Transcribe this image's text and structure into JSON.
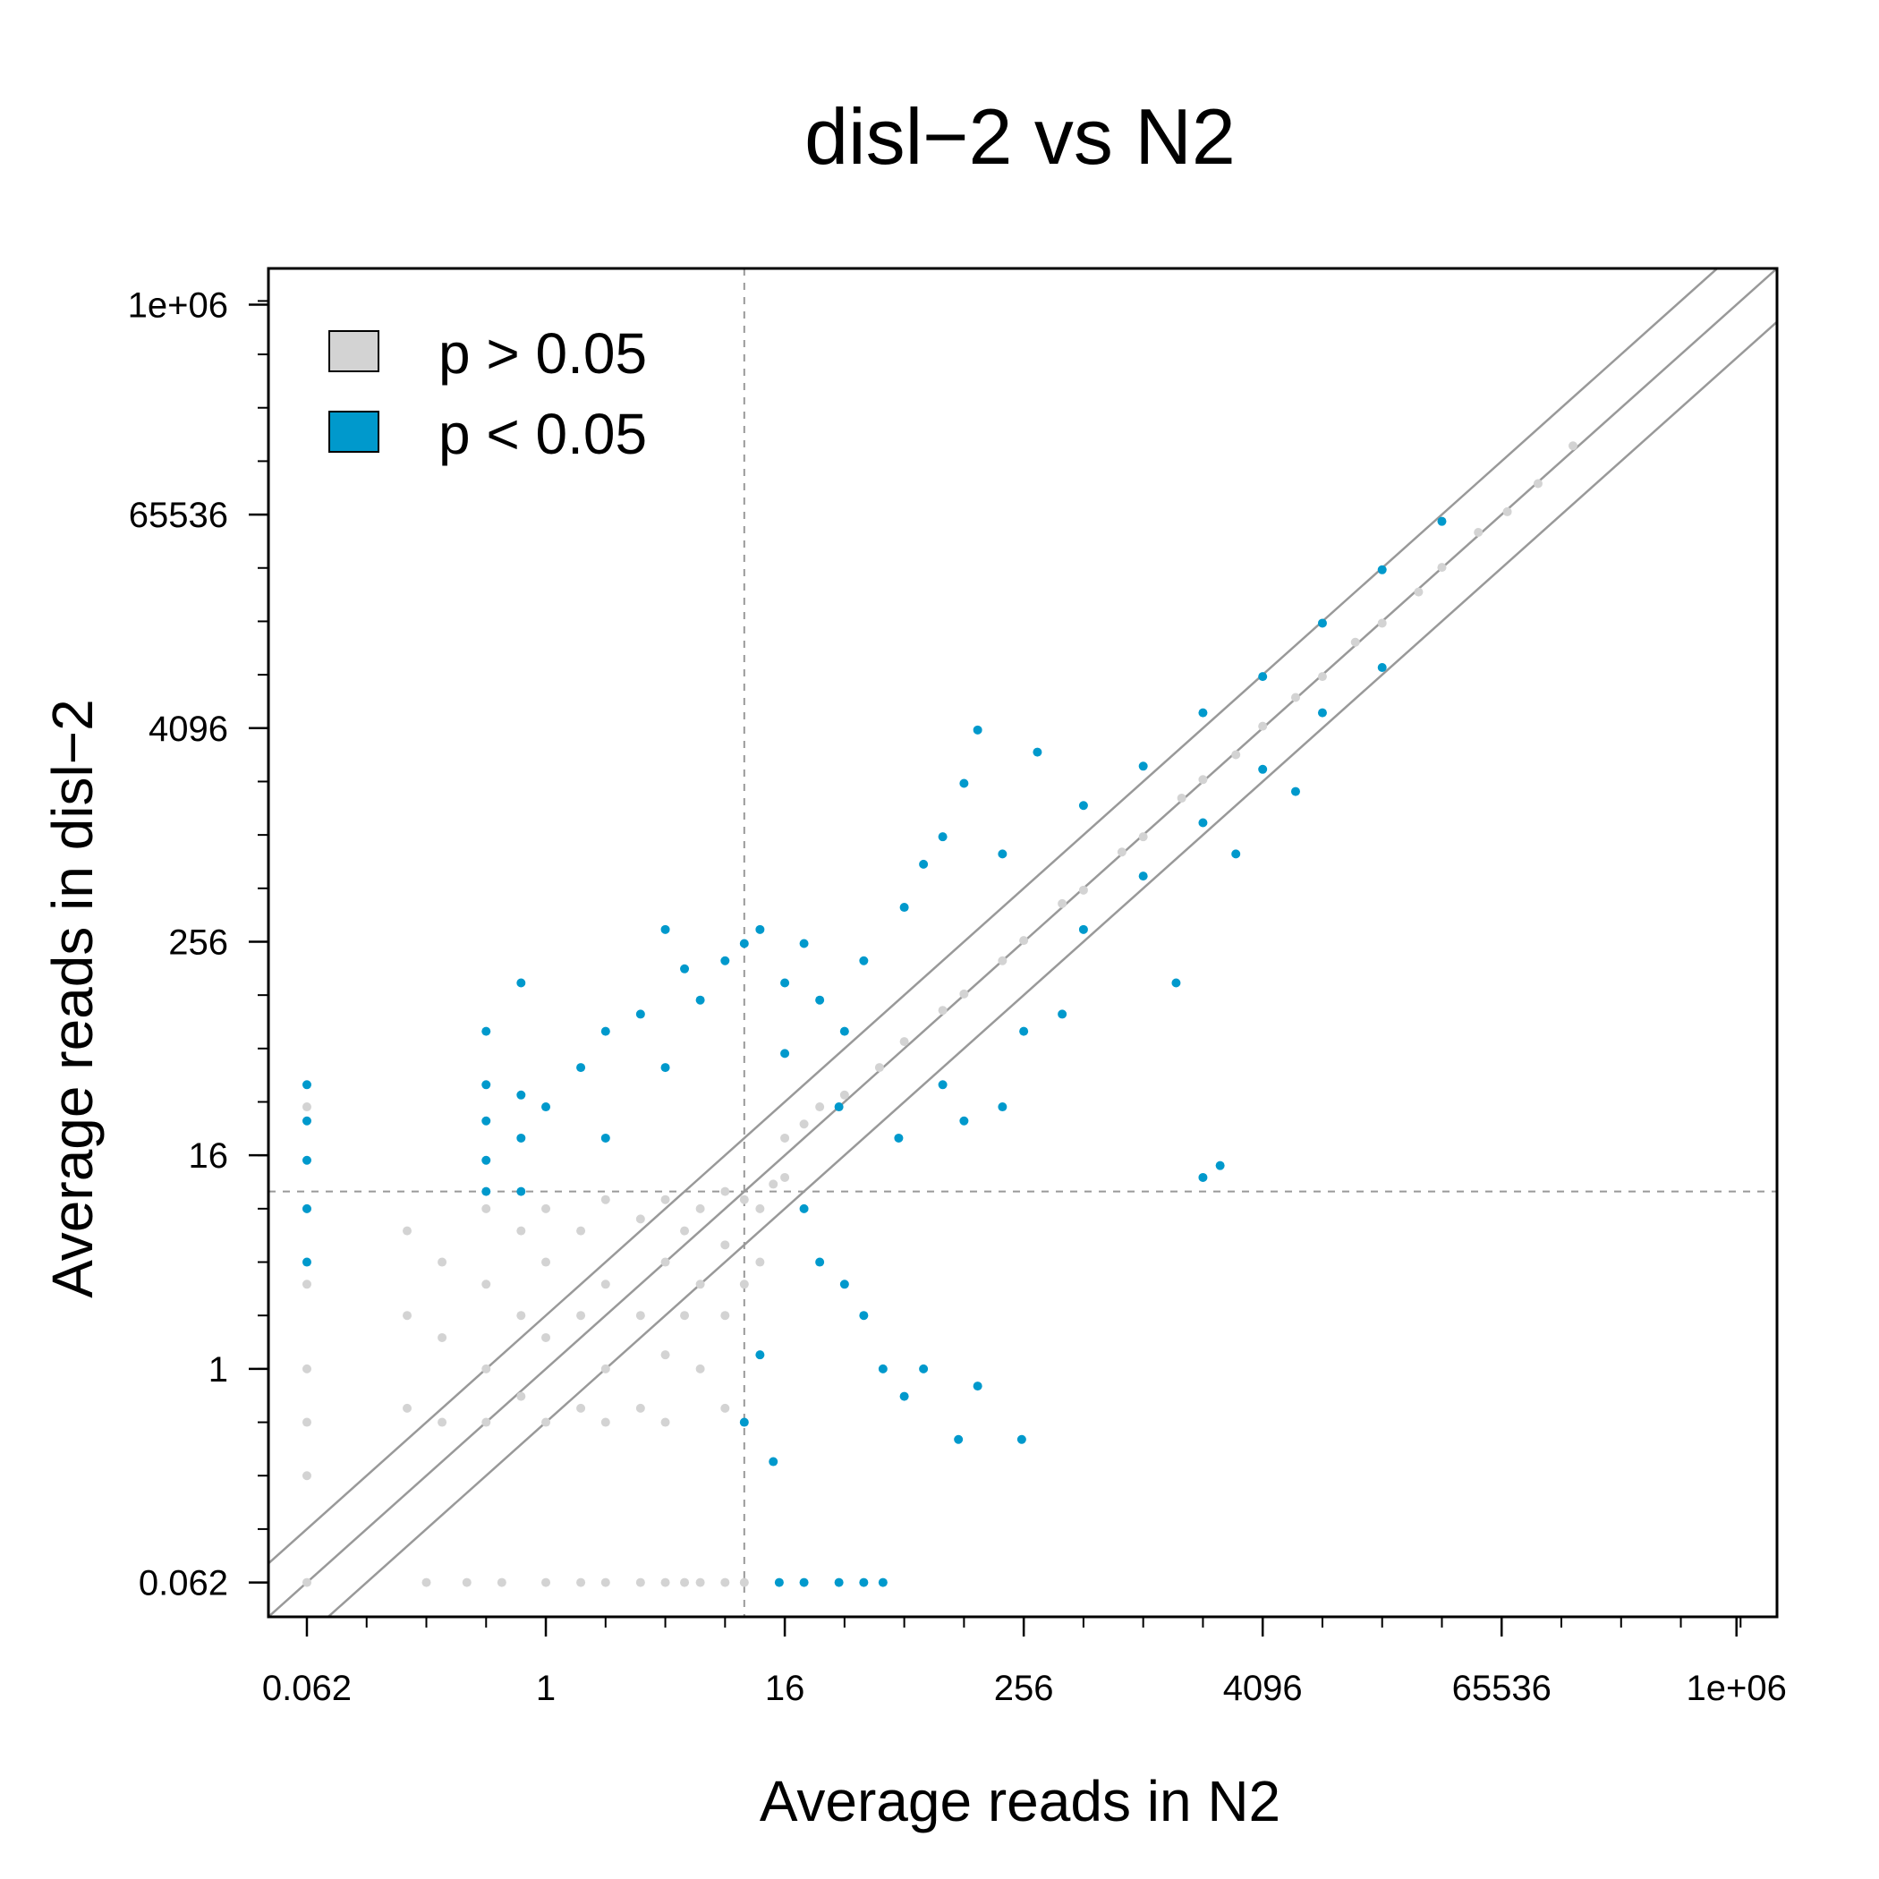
{
  "chart_data": {
    "type": "scatter",
    "title": "disl−2 vs N2",
    "xlabel": "Average reads in N2",
    "ylabel": "Average reads in disl−2",
    "log_scale": {
      "x": "log2",
      "y": "log2"
    },
    "xlim": [
      0.04,
      1600000
    ],
    "ylim": [
      0.04,
      1600000
    ],
    "x_ticks": [
      {
        "value": 0.0625,
        "label": "0.062"
      },
      {
        "value": 1,
        "label": "1"
      },
      {
        "value": 16,
        "label": "16"
      },
      {
        "value": 256,
        "label": "256"
      },
      {
        "value": 4096,
        "label": "4096"
      },
      {
        "value": 65536,
        "label": "65536"
      },
      {
        "value": 1000000,
        "label": "1e+06"
      }
    ],
    "y_ticks": [
      {
        "value": 0.0625,
        "label": "0.062"
      },
      {
        "value": 1,
        "label": "1"
      },
      {
        "value": 16,
        "label": "16"
      },
      {
        "value": 256,
        "label": "256"
      },
      {
        "value": 4096,
        "label": "4096"
      },
      {
        "value": 65536,
        "label": "65536"
      },
      {
        "value": 1000000,
        "label": "1e+06"
      }
    ],
    "threshold_lines": {
      "x": 10,
      "y": 10,
      "style": "dashed"
    },
    "reference_lines": [
      {
        "fold": 0.5
      },
      {
        "fold": 1
      },
      {
        "fold": 2
      }
    ],
    "grid": false,
    "legend": {
      "position": "top-left",
      "entries": [
        {
          "label": "p > 0.05",
          "color": "#d3d3d3"
        },
        {
          "label": "p < 0.05",
          "color": "#0099cc"
        }
      ]
    },
    "series": [
      {
        "name": "p > 0.05",
        "color": "#d3d3d3",
        "points": [
          [
            0.0625,
            30
          ],
          [
            0.0625,
            8
          ],
          [
            0.0625,
            3
          ],
          [
            0.0625,
            1
          ],
          [
            0.0625,
            0.5
          ],
          [
            0.0625,
            0.25
          ],
          [
            0.0625,
            0.0625
          ],
          [
            0.2,
            6
          ],
          [
            0.2,
            2
          ],
          [
            0.2,
            0.6
          ],
          [
            0.3,
            4
          ],
          [
            0.3,
            1.5
          ],
          [
            0.3,
            0.5
          ],
          [
            0.5,
            8
          ],
          [
            0.5,
            3
          ],
          [
            0.5,
            1
          ],
          [
            0.5,
            0.5
          ],
          [
            0.75,
            6
          ],
          [
            0.75,
            2
          ],
          [
            0.75,
            0.7
          ],
          [
            1,
            8
          ],
          [
            1,
            4
          ],
          [
            1,
            1.5
          ],
          [
            1,
            0.5
          ],
          [
            1.5,
            6
          ],
          [
            1.5,
            2
          ],
          [
            1.5,
            0.6
          ],
          [
            2,
            9
          ],
          [
            2,
            3
          ],
          [
            2,
            1
          ],
          [
            2,
            0.5
          ],
          [
            3,
            7
          ],
          [
            3,
            2
          ],
          [
            3,
            0.6
          ],
          [
            4,
            9
          ],
          [
            4,
            4
          ],
          [
            4,
            1.2
          ],
          [
            4,
            0.5
          ],
          [
            5,
            6
          ],
          [
            5,
            2
          ],
          [
            6,
            8
          ],
          [
            6,
            3
          ],
          [
            6,
            1
          ],
          [
            8,
            10
          ],
          [
            8,
            5
          ],
          [
            8,
            2
          ],
          [
            8,
            0.6
          ],
          [
            10,
            9
          ],
          [
            10,
            3
          ],
          [
            12,
            8
          ],
          [
            12,
            4
          ],
          [
            14,
            11
          ],
          [
            16,
            20
          ],
          [
            16,
            12
          ],
          [
            20,
            24
          ],
          [
            24,
            30
          ],
          [
            32,
            35
          ],
          [
            48,
            50
          ],
          [
            64,
            70
          ],
          [
            100,
            105
          ],
          [
            128,
            130
          ],
          [
            200,
            200
          ],
          [
            256,
            260
          ],
          [
            400,
            420
          ],
          [
            512,
            500
          ],
          [
            800,
            820
          ],
          [
            1024,
            1000
          ],
          [
            1600,
            1650
          ],
          [
            2048,
            2100
          ],
          [
            3000,
            2900
          ],
          [
            4096,
            4200
          ],
          [
            6000,
            6100
          ],
          [
            8192,
            8000
          ],
          [
            12000,
            12500
          ],
          [
            16384,
            16000
          ],
          [
            25000,
            24000
          ],
          [
            32768,
            33000
          ],
          [
            50000,
            52000
          ],
          [
            70000,
            68000
          ],
          [
            100000,
            98000
          ],
          [
            150000,
            160000
          ],
          [
            0.25,
            0.0625
          ],
          [
            0.4,
            0.0625
          ],
          [
            0.6,
            0.0625
          ],
          [
            1,
            0.0625
          ],
          [
            1.5,
            0.0625
          ],
          [
            2,
            0.0625
          ],
          [
            3,
            0.0625
          ],
          [
            4,
            0.0625
          ],
          [
            5,
            0.0625
          ],
          [
            6,
            0.0625
          ],
          [
            8,
            0.0625
          ],
          [
            10,
            0.0625
          ]
        ]
      },
      {
        "name": "p < 0.05",
        "color": "#0099cc",
        "points": [
          [
            0.0625,
            40
          ],
          [
            0.0625,
            25
          ],
          [
            0.0625,
            15
          ],
          [
            0.0625,
            8
          ],
          [
            0.0625,
            4
          ],
          [
            0.5,
            40
          ],
          [
            0.5,
            25
          ],
          [
            0.5,
            15
          ],
          [
            0.5,
            10
          ],
          [
            0.75,
            35
          ],
          [
            0.75,
            20
          ],
          [
            0.75,
            10
          ],
          [
            0.75,
            150
          ],
          [
            0.5,
            80
          ],
          [
            1,
            30
          ],
          [
            1.5,
            50
          ],
          [
            2,
            80
          ],
          [
            2,
            20
          ],
          [
            3,
            100
          ],
          [
            4,
            50
          ],
          [
            4,
            300
          ],
          [
            5,
            180
          ],
          [
            6,
            120
          ],
          [
            8,
            200
          ],
          [
            10,
            250
          ],
          [
            12,
            300
          ],
          [
            16,
            150
          ],
          [
            16,
            60
          ],
          [
            20,
            250
          ],
          [
            24,
            120
          ],
          [
            32,
            80
          ],
          [
            40,
            200
          ],
          [
            64,
            400
          ],
          [
            80,
            700
          ],
          [
            100,
            1000
          ],
          [
            128,
            2000
          ],
          [
            150,
            4000
          ],
          [
            200,
            800
          ],
          [
            300,
            3000
          ],
          [
            512,
            1500
          ],
          [
            1024,
            2500
          ],
          [
            2048,
            5000
          ],
          [
            4096,
            8000
          ],
          [
            8192,
            16000
          ],
          [
            16384,
            32000
          ],
          [
            32768,
            60000
          ],
          [
            20,
            8
          ],
          [
            24,
            4
          ],
          [
            32,
            3
          ],
          [
            40,
            2
          ],
          [
            50,
            1
          ],
          [
            64,
            0.7
          ],
          [
            30,
            30
          ],
          [
            60,
            20
          ],
          [
            100,
            40
          ],
          [
            128,
            25
          ],
          [
            200,
            30
          ],
          [
            256,
            80
          ],
          [
            400,
            100
          ],
          [
            512,
            300
          ],
          [
            1024,
            600
          ],
          [
            2048,
            1200
          ],
          [
            4096,
            2400
          ],
          [
            8192,
            5000
          ],
          [
            16384,
            9000
          ],
          [
            3000,
            800
          ],
          [
            1500,
            150
          ],
          [
            2048,
            12
          ],
          [
            2500,
            14
          ],
          [
            6000,
            1800
          ],
          [
            150,
            0.8
          ],
          [
            250,
            0.4
          ],
          [
            120,
            0.4
          ],
          [
            80,
            1
          ],
          [
            15,
            0.0625
          ],
          [
            20,
            0.0625
          ],
          [
            30,
            0.0625
          ],
          [
            40,
            0.0625
          ],
          [
            50,
            0.0625
          ],
          [
            12,
            1.2
          ],
          [
            10,
            0.5
          ],
          [
            14,
            0.3
          ]
        ]
      }
    ]
  }
}
